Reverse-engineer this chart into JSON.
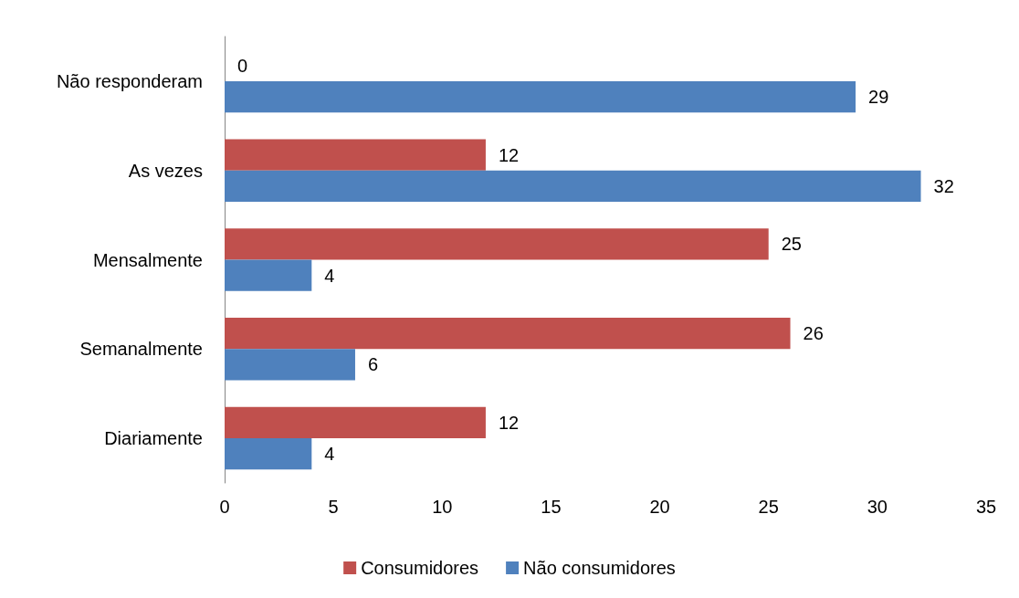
{
  "chart_data": {
    "type": "bar",
    "orientation": "horizontal",
    "categories": [
      "Não responderam",
      "As vezes",
      "Mensalmente",
      "Semanalmente",
      "Diariamente"
    ],
    "series": [
      {
        "name": "Consumidores",
        "color": "#c0504d",
        "values": [
          0,
          12,
          25,
          26,
          12
        ]
      },
      {
        "name": "Não consumidores",
        "color": "#4f81bd",
        "values": [
          29,
          32,
          4,
          6,
          4
        ]
      }
    ],
    "xlim": [
      0,
      35
    ],
    "xticks": [
      0,
      5,
      10,
      15,
      20,
      25,
      30,
      35
    ],
    "grid": false,
    "legend": "bottom",
    "data_labels": true
  }
}
